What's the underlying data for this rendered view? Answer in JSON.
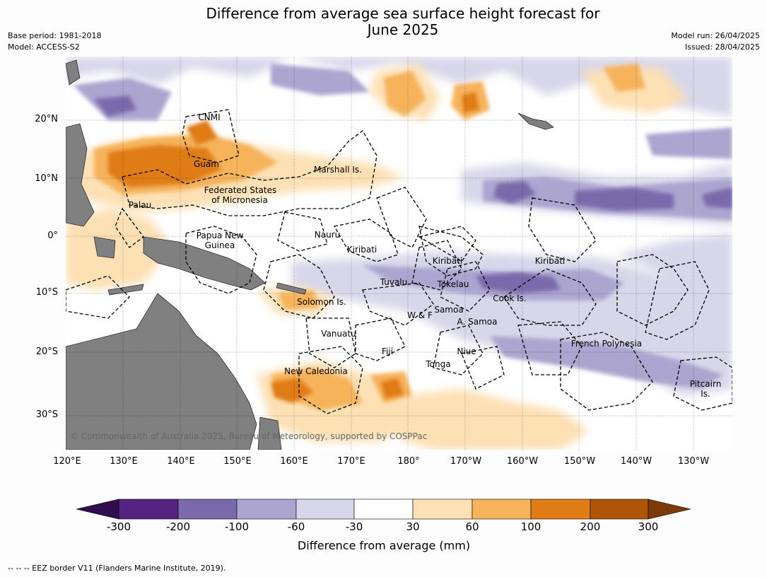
{
  "title_line1": "Difference from average sea surface height forecast for",
  "title_line2": "June 2025",
  "meta_left": [
    "Base period: 1981-2018",
    "Model: ACCESS-S2"
  ],
  "meta_right": [
    "Model run: 26/04/2025",
    "Issued: 28/04/2025"
  ],
  "lat_labels": [
    "20°N",
    "10°N",
    "0°",
    "10°S",
    "20°S",
    "30°S"
  ],
  "lon_labels": [
    "120°E",
    "130°E",
    "140°E",
    "150°E",
    "160°E",
    "170°E",
    "180°",
    "170°W",
    "160°W",
    "150°W",
    "140°W",
    "130°W"
  ],
  "places": [
    "CNMI",
    "Guam",
    "Marshall Is.",
    "Federated States",
    "of Micronesia",
    "Palau",
    "Papua New",
    "Guinea",
    "Nauru",
    "Kiribati",
    "Kiribati",
    "Kiribati",
    "Tuvalu",
    "Tokelau",
    "Cook Is.",
    "Solomon Is.",
    "W & F",
    "Samoa",
    "A. Samoa",
    "Vanuatu",
    "Fiji",
    "Niue",
    "Tonga",
    "French Polynesia",
    "New Caledonia",
    "Pitcairn",
    "Is."
  ],
  "copyright": "© Commonwealth of Australia 2025, Bureau of Meteorology, supported by COSPPac",
  "colorbar": {
    "ticks": [
      "-300",
      "-200",
      "-100",
      "-60",
      "-30",
      "30",
      "60",
      "100",
      "200",
      "300"
    ],
    "colors": [
      "#2e0e4f",
      "#55237f",
      "#7a6aab",
      "#aca5d0",
      "#d8d7ea",
      "#ffffff",
      "#fde0b4",
      "#f6b35c",
      "#df7c14",
      "#b05508",
      "#7b3b08"
    ],
    "title": "Difference from average (mm)"
  },
  "colors": {
    "land": "#808080",
    "eez": "#000000"
  },
  "eez_legend": "--  --  -- EEZ border V11 (Flanders Marine Institute, 2019)."
}
